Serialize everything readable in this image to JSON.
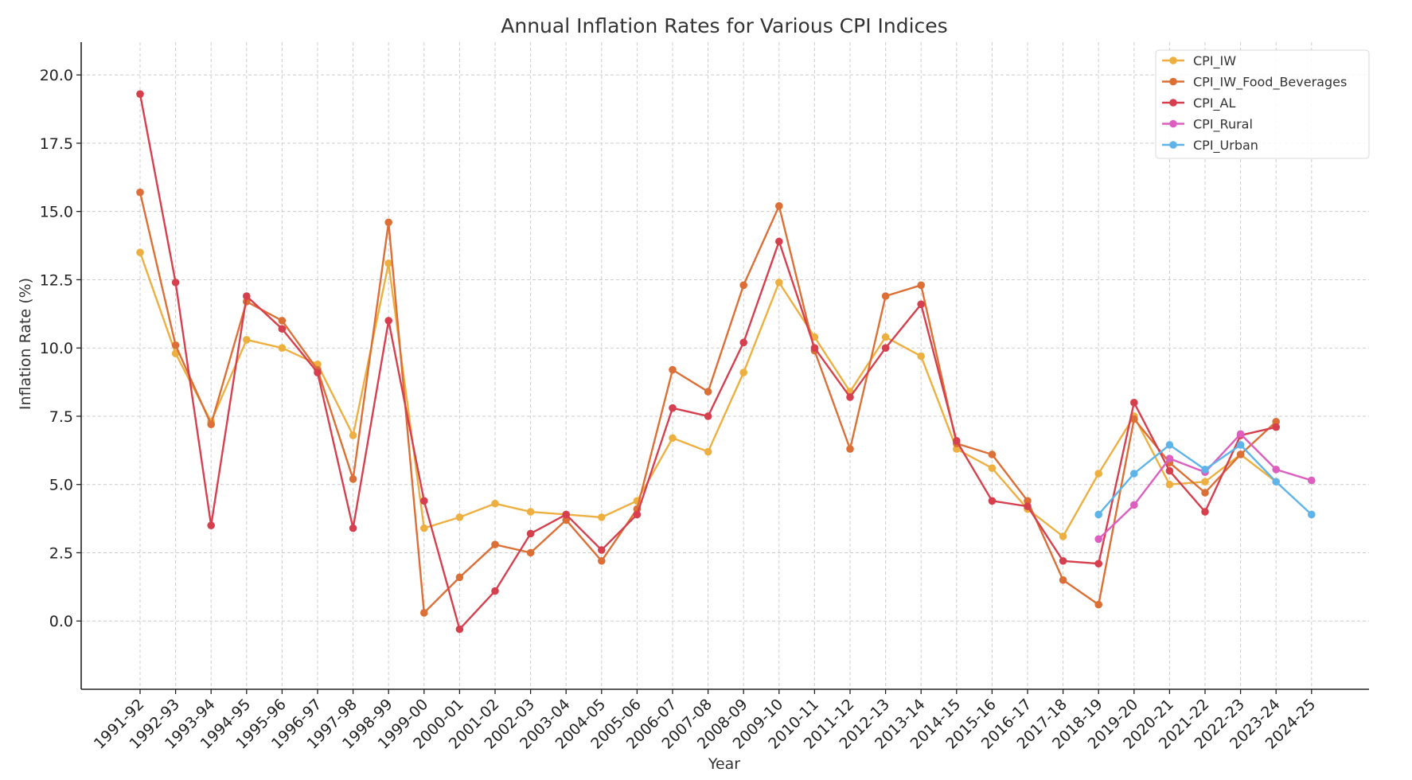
{
  "chart_data": {
    "type": "line",
    "title": "Annual Inflation Rates for Various CPI Indices",
    "xlabel": "Year",
    "ylabel": "Inflation Rate (%)",
    "ylim": [
      -2.5,
      21.2
    ],
    "yticks": [
      "0.0",
      "2.5",
      "5.0",
      "7.5",
      "10.0",
      "12.5",
      "15.0",
      "17.5",
      "20.0"
    ],
    "grid": true,
    "legend_position": "top-right",
    "categories": [
      "1991-92",
      "1992-93",
      "1993-94",
      "1994-95",
      "1995-96",
      "1996-97",
      "1997-98",
      "1998-99",
      "1999-00",
      "2000-01",
      "2001-02",
      "2002-03",
      "2003-04",
      "2004-05",
      "2005-06",
      "2006-07",
      "2007-08",
      "2008-09",
      "2009-10",
      "2010-11",
      "2011-12",
      "2012-13",
      "2013-14",
      "2014-15",
      "2015-16",
      "2016-17",
      "2017-18",
      "2018-19",
      "2019-20",
      "2020-21",
      "2021-22",
      "2022-23",
      "2023-24",
      "2024-25"
    ],
    "series": [
      {
        "name": "CPI_IW",
        "color": "#EDB040",
        "values": [
          13.5,
          9.8,
          7.3,
          10.3,
          10.0,
          9.4,
          6.8,
          13.1,
          3.4,
          3.8,
          4.3,
          4.0,
          3.9,
          3.8,
          4.4,
          6.7,
          6.2,
          9.1,
          12.4,
          10.4,
          8.4,
          10.4,
          9.7,
          6.3,
          5.6,
          4.1,
          3.1,
          5.4,
          7.5,
          5.0,
          5.1,
          6.1,
          5.1,
          null
        ]
      },
      {
        "name": "CPI_IW_Food_Beverages",
        "color": "#DC6F35",
        "values": [
          15.7,
          10.1,
          7.2,
          11.7,
          11.0,
          9.2,
          5.2,
          14.6,
          0.3,
          1.6,
          2.8,
          2.5,
          3.7,
          2.2,
          4.1,
          9.2,
          8.4,
          12.3,
          15.2,
          9.9,
          6.3,
          11.9,
          12.3,
          6.5,
          6.1,
          4.4,
          1.5,
          0.6,
          7.4,
          5.8,
          4.7,
          6.1,
          7.3,
          null
        ]
      },
      {
        "name": "CPI_AL",
        "color": "#D6404E",
        "values": [
          19.3,
          12.4,
          3.5,
          11.9,
          10.7,
          9.1,
          3.4,
          11.0,
          4.4,
          -0.3,
          1.1,
          3.2,
          3.9,
          2.6,
          3.9,
          7.8,
          7.5,
          10.2,
          13.9,
          10.0,
          8.2,
          10.0,
          11.6,
          6.6,
          4.4,
          4.2,
          2.2,
          2.1,
          8.0,
          5.5,
          4.0,
          6.8,
          7.1,
          null
        ]
      },
      {
        "name": "CPI_Rural",
        "color": "#DC5FC0",
        "values": [
          null,
          null,
          null,
          null,
          null,
          null,
          null,
          null,
          null,
          null,
          null,
          null,
          null,
          null,
          null,
          null,
          null,
          null,
          null,
          null,
          null,
          null,
          null,
          null,
          null,
          null,
          null,
          3.0,
          4.25,
          5.95,
          5.45,
          6.85,
          5.55,
          5.15
        ]
      },
      {
        "name": "CPI_Urban",
        "color": "#5EB4E8",
        "values": [
          null,
          null,
          null,
          null,
          null,
          null,
          null,
          null,
          null,
          null,
          null,
          null,
          null,
          null,
          null,
          null,
          null,
          null,
          null,
          null,
          null,
          null,
          null,
          null,
          null,
          null,
          null,
          3.9,
          5.4,
          6.45,
          5.55,
          6.45,
          5.1,
          3.9
        ]
      }
    ]
  }
}
